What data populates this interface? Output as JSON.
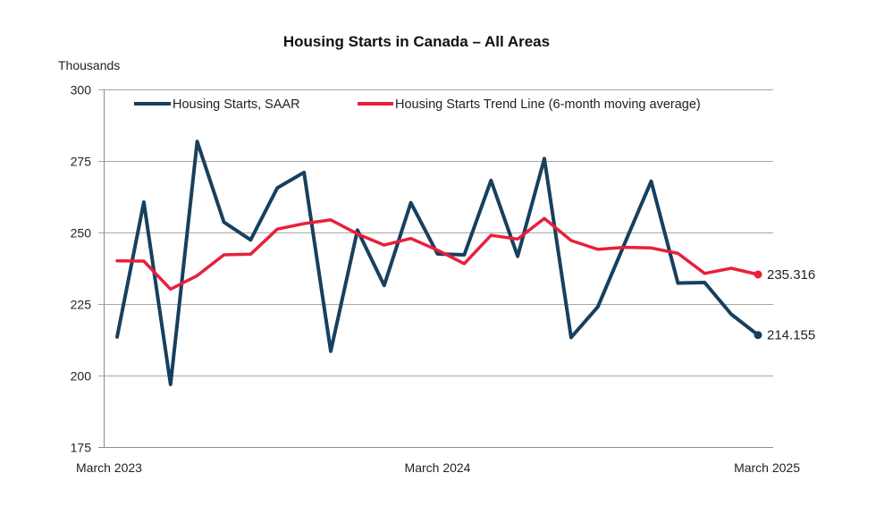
{
  "chart_data": {
    "type": "line",
    "title": "Housing Starts in Canada – All Areas",
    "ylabel": "Thousands",
    "xlabel": "",
    "ylim": [
      175,
      300
    ],
    "yticks": [
      175,
      200,
      225,
      250,
      275,
      300
    ],
    "ytick_labels": [
      "175",
      "200",
      "225",
      "250",
      "275",
      "300"
    ],
    "grid": true,
    "legend_position": "top",
    "x": [
      "Mar 2023",
      "Apr 2023",
      "May 2023",
      "Jun 2023",
      "Jul 2023",
      "Aug 2023",
      "Sep 2023",
      "Oct 2023",
      "Nov 2023",
      "Dec 2023",
      "Jan 2024",
      "Feb 2024",
      "Mar 2024",
      "Apr 2024",
      "May 2024",
      "Jun 2024",
      "Jul 2024",
      "Aug 2024",
      "Sep 2024",
      "Oct 2024",
      "Nov 2024",
      "Dec 2024",
      "Jan 2025",
      "Feb 2025",
      "Mar 2025"
    ],
    "xtick_labels": [
      {
        "index": 0,
        "label": "March 2023"
      },
      {
        "index": 12,
        "label": "March 2024"
      },
      {
        "index": 24,
        "label": "March 2025"
      }
    ],
    "series": [
      {
        "name": "Housing Starts, SAAR",
        "color": "#17405f",
        "values": [
          213.5,
          260.6,
          196.9,
          281.8,
          253.6,
          247.4,
          265.6,
          271.0,
          208.5,
          250.8,
          231.5,
          260.4,
          242.5,
          242.2,
          268.2,
          241.7,
          275.8,
          213.3,
          224.0,
          246.0,
          267.9,
          232.3,
          232.5,
          221.4,
          214.155
        ],
        "end_label": "214.155"
      },
      {
        "name": "Housing Starts Trend Line (6-month moving average)",
        "color": "#e8203a",
        "values": [
          240.1,
          240.0,
          230.2,
          234.9,
          242.2,
          242.4,
          251.2,
          253.1,
          254.4,
          249.5,
          245.6,
          247.9,
          243.8,
          239.1,
          249.0,
          247.7,
          254.9,
          247.2,
          244.1,
          244.8,
          244.6,
          242.7,
          235.7,
          237.5,
          235.316
        ],
        "end_label": "235.316"
      }
    ]
  }
}
